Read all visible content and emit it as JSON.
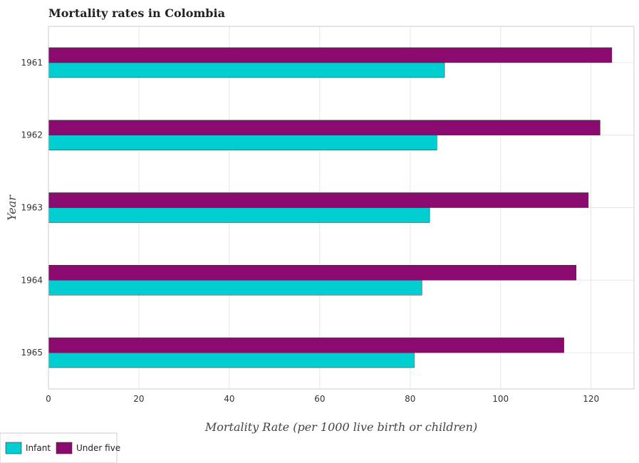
{
  "chart_data": {
    "type": "bar",
    "orientation": "horizontal",
    "title": "Mortality rates in Colombia",
    "xlabel": "Mortality Rate (per 1000 live birth or children)",
    "ylabel": "Year",
    "categories": [
      "1961",
      "1962",
      "1963",
      "1964",
      "1965"
    ],
    "series": [
      {
        "name": "Infant",
        "color": "#00ced1",
        "values": [
          87.6,
          85.9,
          84.3,
          82.6,
          80.9
        ]
      },
      {
        "name": "Under five",
        "color": "#8b0a6f",
        "values": [
          124.6,
          122.0,
          119.4,
          116.7,
          114.0
        ]
      }
    ],
    "xlim": [
      0,
      129.5
    ],
    "xticks": [
      0,
      20,
      40,
      60,
      80,
      100,
      120
    ],
    "grid": true,
    "legend_position": "bottom-left"
  }
}
